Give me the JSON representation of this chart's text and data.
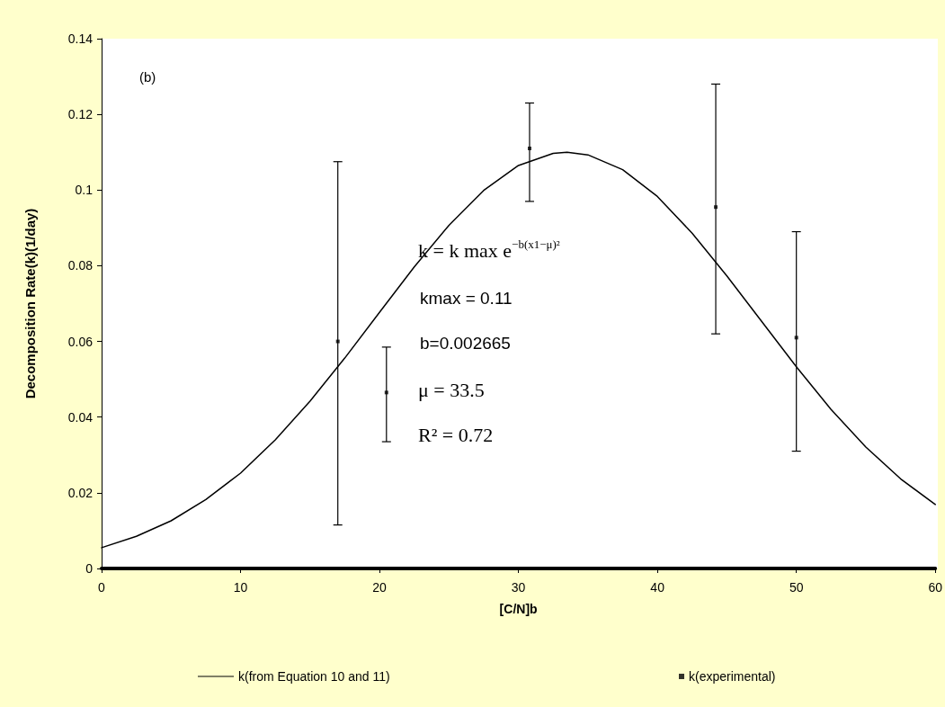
{
  "chart_data": {
    "type": "line",
    "xlabel": "[C/N]b",
    "ylabel": "Decomposition Rate(k)(1/day)",
    "xlim": [
      0,
      60
    ],
    "xticks": [
      0,
      10,
      20,
      30,
      40,
      50,
      60
    ],
    "ylim": [
      0,
      0.14
    ],
    "yticks": [
      0,
      0.02,
      0.04,
      0.06,
      0.08,
      0.1,
      0.12,
      0.14
    ],
    "grid": false,
    "legend": "bottom",
    "line_style": "solid",
    "annotations": [
      "(b)",
      "k = k max e$^{−b(x1−μ)²}$",
      "kmax = 0.11",
      "b=0.002665",
      "μ = 33.5",
      "R² = 0.72"
    ],
    "series": [
      {
        "name": "k(from Equation 10 and 11)",
        "color": "#000000",
        "marker": "none",
        "x": [
          0,
          2.5,
          5,
          7.5,
          10,
          12.5,
          15,
          17.5,
          20,
          22.5,
          25,
          27.5,
          30,
          32.5,
          33.5,
          35,
          37.5,
          40,
          42.5,
          45,
          47.5,
          50,
          52.5,
          55,
          57.5,
          60
        ],
        "values": [
          0.0055,
          0.0085,
          0.0126,
          0.0182,
          0.0252,
          0.034,
          0.0442,
          0.0556,
          0.0677,
          0.0797,
          0.0907,
          0.0999,
          0.1065,
          0.1097,
          0.11,
          0.1093,
          0.1054,
          0.0983,
          0.0886,
          0.0773,
          0.0653,
          0.0533,
          0.042,
          0.0321,
          0.0237,
          0.0169
        ]
      },
      {
        "name": "k(experimental)",
        "type": "scatter",
        "color": "#000000",
        "marker": "square",
        "x": [
          17,
          20.5,
          30.8,
          44.2,
          50
        ],
        "values": [
          0.06,
          0.0465,
          0.111,
          0.0955,
          0.061
        ],
        "errors": [
          [
            0.0115,
            0.1075
          ],
          [
            0.0335,
            0.0585
          ],
          [
            0.097,
            0.123
          ],
          [
            0.062,
            0.128
          ],
          [
            0.031,
            0.089
          ]
        ]
      }
    ]
  }
}
